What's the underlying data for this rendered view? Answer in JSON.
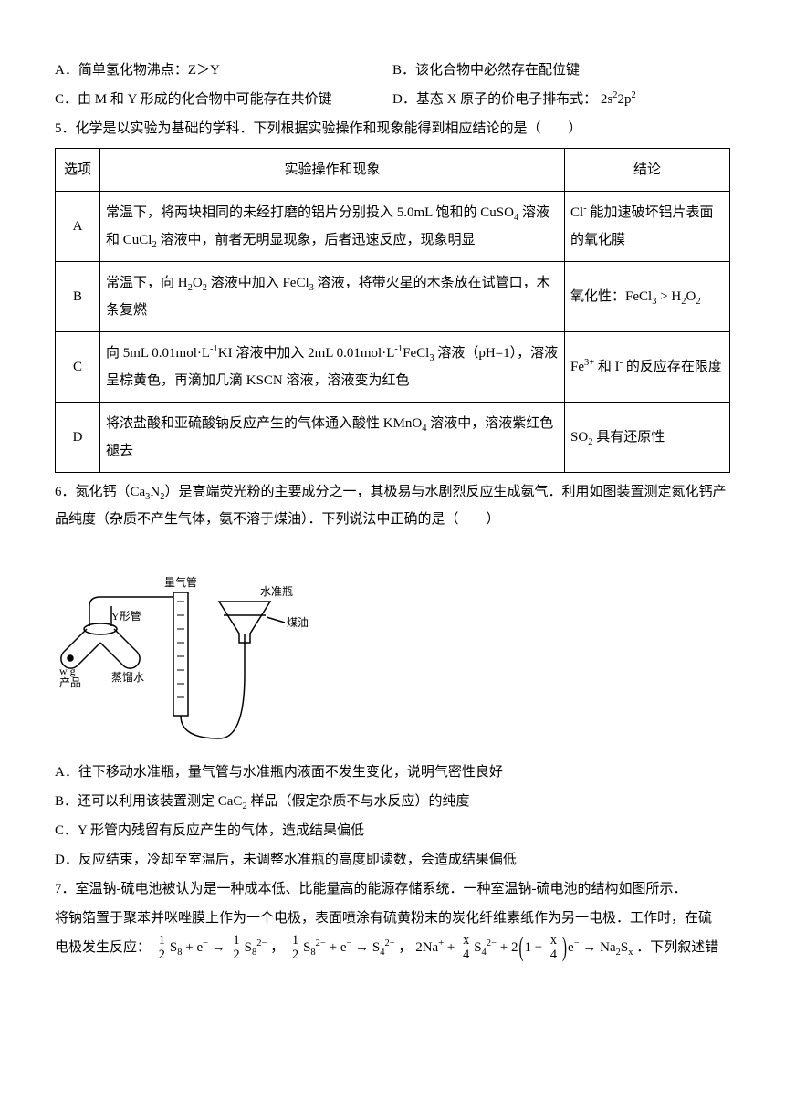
{
  "optAB": {
    "a": "A．简单氢化物沸点：Z＞Y",
    "b": "B．该化合物中必然存在配位键"
  },
  "optCD": {
    "c": "C．由 M 和 Y 形成的化合物中可能存在共价键",
    "d_prefix": "D．基态 X 原子的价电子排布式：",
    "d_formula_html": "2s<span class='sup'>2</span>2p<span class='sup'>2</span>"
  },
  "q5_stem": "5．化学是以实验为基础的学科．下列根据实验操作和现象能得到相应结论的是（　　）",
  "table": {
    "head_idx": "选项",
    "head_op": "实验操作和现象",
    "head_res": "结论",
    "rows": [
      {
        "idx": "A",
        "op_html": "常温下，将两块相同的未经打磨的铝片分别投入 5.0mL 饱和的 CuSO<span class='sub'>4</span> 溶液和 CuCl<span class='sub'>2</span> 溶液中，前者无明显现象，后者迅速反应，现象明显",
        "res_html": "Cl<span class='sup'>-</span> 能加速破坏铝片表面的氧化膜"
      },
      {
        "idx": "B",
        "op_html": "常温下，向 H<span class='sub'>2</span>O<span class='sub'>2</span> 溶液中加入 FeCl<span class='sub'>3</span> 溶液，将带火星的木条放在试管口，木条复燃",
        "res_html": "氧化性：FeCl<span class='sub'>3</span> &gt; H<span class='sub'>2</span>O<span class='sub'>2</span>"
      },
      {
        "idx": "C",
        "op_html": "向 5mL 0.01mol·L<span class='sup'>-1</span>KI 溶液中加入 2mL 0.01mol·L<span class='sup'>-1</span>FeCl<span class='sub'>3</span> 溶液（pH=1），溶液呈棕黄色，再滴加几滴 KSCN 溶液，溶液变为红色",
        "res_html": "Fe<span class='sup'>3+</span> 和 I<span class='sup'>-</span> 的反应存在限度"
      },
      {
        "idx": "D",
        "op_html": "将浓盐酸和亚硫酸钠反应产生的气体通入酸性 KMnO<span class='sub'>4</span> 溶液中，溶液紫红色褪去",
        "res_html": "SO<span class='sub'>2</span> 具有还原性"
      }
    ]
  },
  "q6_stem_html": "6．氮化钙（Ca<span class='sub'>3</span>N<span class='sub'>2</span>）是高端荧光粉的主要成分之一，其极易与水剧烈反应生成氨气．利用如图装置测定氮化钙产品纯度（杂质不产生气体，氨不溶于煤油）．下列说法中正确的是（　　）",
  "diagram_labels": {
    "ytube": "Y形管",
    "gas_tube": "量气管",
    "level_bottle": "水准瓶",
    "kerosene": "煤油",
    "product": "产品",
    "distilled": "蒸馏水",
    "wg": "w g"
  },
  "q6_opts": {
    "a": "A．往下移动水准瓶，量气管与水准瓶内液面不发生变化，说明气密性良好",
    "b_html": "B．还可以利用该装置测定 CaC<span class='sub'>2</span> 样品（假定杂质不与水反应）的纯度",
    "c": "C．Y 形管内残留有反应产生的气体，造成结果偏低",
    "d": "D．反应结束，冷却至室温后，未调整水准瓶的高度即读数，会造成结果偏低"
  },
  "q7_p1": "7．室温钠-硫电池被认为是一种成本低、比能量高的能源存储系统．一种室温钠-硫电池的结构如图所示．",
  "q7_p2": "将钠箔置于聚苯并咪唑膜上作为一个电极，表面喷涂有硫黄粉末的炭化纤维素纸作为另一电极．工作时，在硫",
  "q7_p3_prefix": "电极发生反应：",
  "q7_eq": {
    "arrow": "→",
    "plus": "+",
    "e": "e<span class='sup'>−</span>",
    "s8_html": "S<span class='sub'>8</span>",
    "s82m_html": "S<span class='sub'>8</span><span class='sup'>2−</span>",
    "s42m_html": "S<span class='sub'>4</span><span class='sup'>2−</span>",
    "na_html": "2Na<span class='sup'>+</span>",
    "na2sx_html": "Na<span class='sub'>2</span>S<span class='sub'>x</span>",
    "half_n": "1",
    "half_d": "2",
    "x4_n": "x",
    "x4_d": "4",
    "one": "1"
  },
  "q7_p3_suffix": "．下列叙述错"
}
